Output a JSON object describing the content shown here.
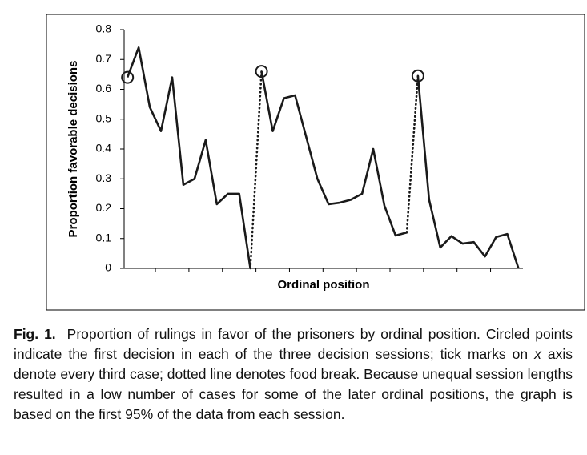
{
  "chart_data": {
    "type": "line",
    "ylabel": "Proportion favorable decisions",
    "xlabel": "Ordinal position",
    "color": "#1a1a1a",
    "xlim": [
      0.7,
      36.4
    ],
    "xticks": [
      3.5,
      6.5,
      9.5,
      12.5,
      15.5,
      18.5,
      21.5,
      24.5,
      27.5,
      30.5,
      33.5
    ],
    "ylim": [
      0,
      0.8
    ],
    "yticks": [
      0,
      0.1,
      0.2,
      0.3,
      0.4,
      0.5,
      0.6,
      0.7,
      0.8
    ],
    "series": [
      {
        "x": [
          1,
          2,
          3,
          4,
          5,
          6,
          7,
          8,
          9,
          10,
          11,
          12
        ],
        "values": [
          0.64,
          0.74,
          0.54,
          0.46,
          0.64,
          0.28,
          0.3,
          0.43,
          0.215,
          0.25,
          0.25,
          0
        ]
      },
      {
        "x": [
          13,
          14,
          15,
          16,
          17,
          18,
          19,
          20,
          21,
          22,
          23,
          24,
          25,
          26
        ],
        "values": [
          0.66,
          0.46,
          0.57,
          0.58,
          0.44,
          0.3,
          0.215,
          0.22,
          0.23,
          0.25,
          0.4,
          0.21,
          0.11,
          0.12
        ]
      },
      {
        "x": [
          27,
          28,
          29,
          30,
          31,
          32,
          33,
          34,
          35,
          36
        ],
        "values": [
          0.645,
          0.23,
          0.07,
          0.108,
          0.083,
          0.088,
          0.04,
          0.105,
          0.115,
          0
        ]
      }
    ]
  },
  "caption": {
    "label": "Fig. 1.",
    "text": [
      "Proportion of rulings in favor of the prisoners by ordinal position. Circled points indicate the first decision in each of the three decision sessions; tick marks on ",
      "x",
      " axis denote every third case; dotted line denotes food break. Because unequal session lengths resulted in a low number of cases for some of the later ordinal positions, the graph is based on the first 95% of the data from each session."
    ]
  }
}
